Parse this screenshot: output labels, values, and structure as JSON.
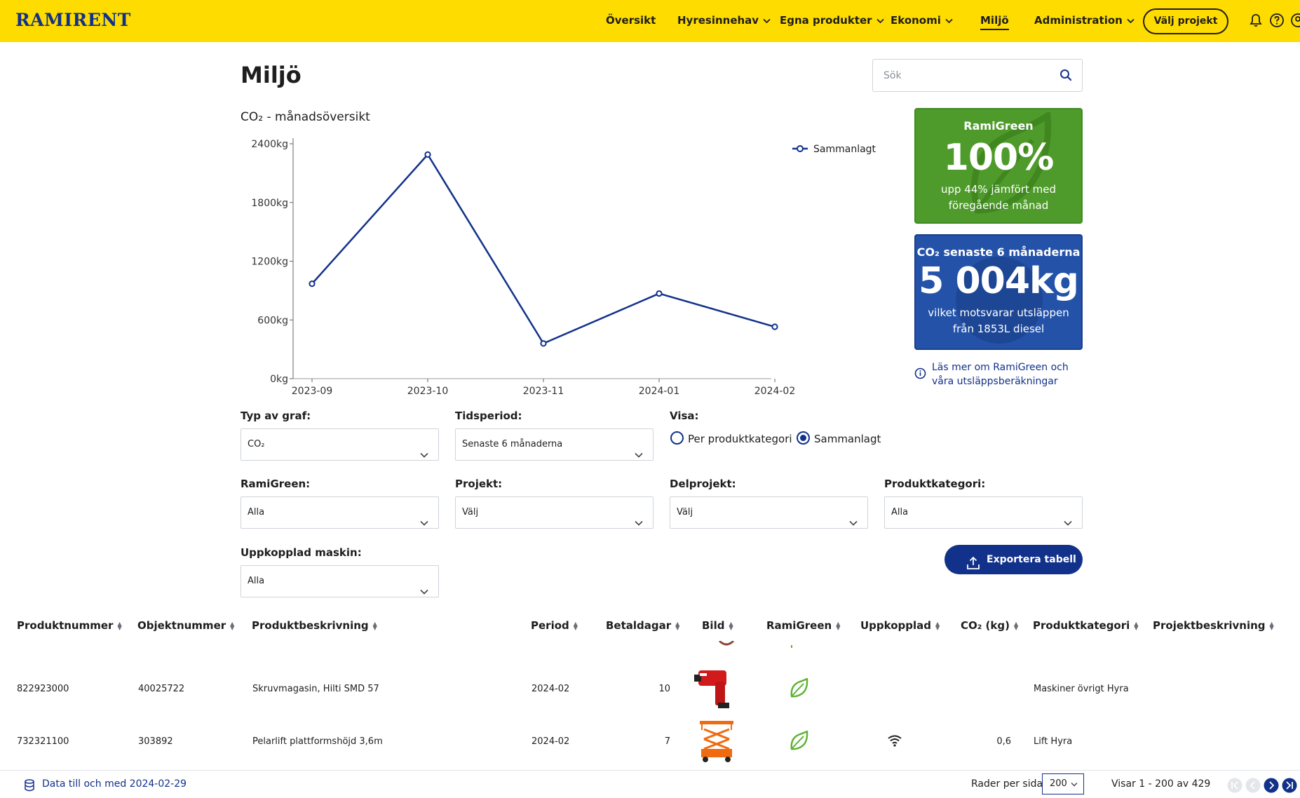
{
  "header": {
    "logo": "RAMIRENT",
    "nav": {
      "overview": "Översikt",
      "holdings": "Hyresinnehav",
      "own_products": "Egna produkter",
      "economy": "Ekonomi",
      "environment": "Miljö",
      "administration": "Administration"
    },
    "select_project": "Välj projekt"
  },
  "page": {
    "title": "Miljö",
    "search_placeholder": "Sök"
  },
  "chart_data": {
    "type": "line",
    "title": "CO₂ - månadsöversikt",
    "categories": [
      "2023-09",
      "2023-10",
      "2023-11",
      "2024-01",
      "2024-02"
    ],
    "series": [
      {
        "name": "Sammanlagt",
        "values": [
          970,
          2290,
          360,
          870,
          530
        ]
      }
    ],
    "ylim": [
      0,
      2400
    ],
    "yticks": [
      0,
      600,
      1200,
      1800,
      2400
    ],
    "y_tick_labels": [
      "0kg",
      "600kg",
      "1200kg",
      "1800kg",
      "2400kg"
    ],
    "legend": "top-right",
    "color": "#12318a"
  },
  "cards": {
    "green": {
      "title": "RamiGreen",
      "value": "100%",
      "text_line1": "upp 44% jämfört med",
      "text_line2": "föregående månad"
    },
    "blue": {
      "title": "CO₂ senaste 6 månaderna",
      "value": "5 004kg",
      "text_line1": "vilket motsvarar utsläppen",
      "text_line2": "från 1853L diesel"
    },
    "info_link": "Läs mer om RamiGreen och våra utsläppsberäkningar"
  },
  "filters": {
    "graph_type": {
      "label": "Typ av graf:",
      "value": "CO₂"
    },
    "period": {
      "label": "Tidsperiod:",
      "value": "Senaste 6 månaderna"
    },
    "show": {
      "label": "Visa:",
      "option_category": "Per produktkategori",
      "option_total": "Sammanlagt",
      "selected": "Sammanlagt"
    },
    "ramigreen": {
      "label": "RamiGreen:",
      "value": "Alla"
    },
    "project": {
      "label": "Projekt:",
      "value": "Välj"
    },
    "subproject": {
      "label": "Delprojekt:",
      "value": "Välj"
    },
    "product_category": {
      "label": "Produktkategori:",
      "value": "Alla"
    },
    "connected_machine": {
      "label": "Uppkopplad maskin:",
      "value": "Alla"
    },
    "export": "Exportera tabell"
  },
  "table": {
    "columns": {
      "product_number": "Produktnummer",
      "object_number": "Objektnummer",
      "description": "Produktbeskrivning",
      "period": "Period",
      "paid_days": "Betaldagar",
      "image": "Bild",
      "ramigreen": "RamiGreen",
      "connected": "Uppkopplad",
      "co2": "CO₂ (kg)",
      "category": "Produktkategori",
      "project_description": "Projektbeskrivning"
    },
    "rows": [
      {
        "product_number": "822923000",
        "object_number": "40025722",
        "description": "Skruvmagasin, Hilti SMD 57",
        "period": "2024-02",
        "paid_days": "10",
        "image_icon": "screw-gun-image",
        "ramigreen": true,
        "connected": false,
        "co2": "",
        "category": "Maskiner övrigt Hyra",
        "project_description": ""
      },
      {
        "product_number": "732321100",
        "object_number": "303892",
        "description": "Pelarlift plattformshöjd 3,6m",
        "period": "2024-02",
        "paid_days": "7",
        "image_icon": "scissor-lift-image",
        "ramigreen": true,
        "connected": true,
        "co2": "0,6",
        "category": "Lift Hyra",
        "project_description": ""
      }
    ]
  },
  "footer": {
    "data_until": "Data till och med 2024-02-29",
    "rows_per_page_label": "Rader per sida",
    "rows_per_page": "200",
    "range": "Visar 1 - 200 av 429"
  },
  "colors": {
    "brand_yellow": "#ffdc00",
    "brand_blue": "#12318a",
    "green_card": "#4e9b2b",
    "blue_card": "#2352a8",
    "leaf_green": "#5cb230"
  }
}
